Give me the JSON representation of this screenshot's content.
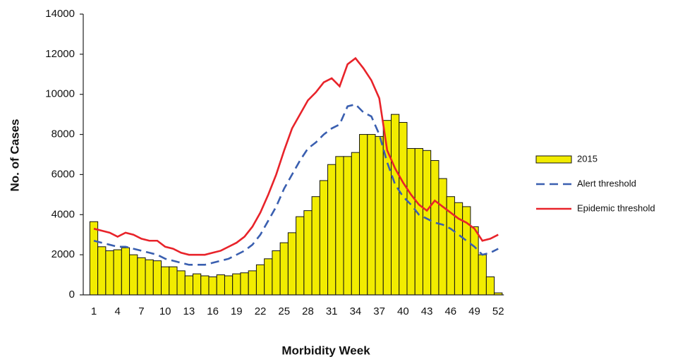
{
  "chart_data": {
    "type": "bar",
    "xlabel": "Morbidity Week",
    "ylabel": "No. of Cases",
    "categories": [
      "1",
      null,
      null,
      "4",
      null,
      null,
      "7",
      null,
      null,
      "10",
      null,
      null,
      "13",
      null,
      null,
      "16",
      null,
      null,
      "19",
      null,
      null,
      "22",
      null,
      null,
      "25",
      null,
      null,
      "28",
      null,
      null,
      "31",
      null,
      null,
      "34",
      null,
      null,
      "37",
      null,
      null,
      "40",
      null,
      null,
      "43",
      null,
      null,
      "46",
      null,
      null,
      "49",
      null,
      null,
      "52"
    ],
    "ylim": [
      0,
      14000
    ],
    "yticks": [
      0,
      2000,
      4000,
      6000,
      8000,
      10000,
      12000,
      14000
    ],
    "grid": false,
    "legend": "right",
    "series": [
      {
        "name": "2015",
        "type": "bar",
        "color": "#f2ec00",
        "values": [
          3650,
          2400,
          2200,
          2250,
          2350,
          2000,
          1850,
          1750,
          1700,
          1400,
          1400,
          1200,
          950,
          1050,
          950,
          900,
          1000,
          950,
          1050,
          1100,
          1200,
          1500,
          1800,
          2200,
          2600,
          3100,
          3900,
          4200,
          4900,
          5700,
          6500,
          6900,
          6900,
          7100,
          8000,
          8000,
          7900,
          8700,
          9000,
          8600,
          7300,
          7300,
          7200,
          6700,
          5800,
          4900,
          4600,
          4400,
          3400,
          2000,
          900,
          100
        ]
      },
      {
        "name": "Alert threshold",
        "type": "line",
        "style": "dashed",
        "color": "#3a5fb0",
        "values": [
          2700,
          2600,
          2500,
          2400,
          2400,
          2300,
          2200,
          2100,
          2000,
          1800,
          1700,
          1600,
          1500,
          1500,
          1500,
          1600,
          1700,
          1800,
          2000,
          2200,
          2500,
          3000,
          3700,
          4400,
          5300,
          6000,
          6700,
          7300,
          7600,
          8000,
          8300,
          8500,
          9400,
          9500,
          9100,
          8900,
          8000,
          6600,
          5500,
          4900,
          4500,
          4000,
          3800,
          3600,
          3500,
          3300,
          3000,
          2700,
          2400,
          2000,
          2100,
          2300
        ]
      },
      {
        "name": "Epidemic threshold",
        "type": "line",
        "style": "solid",
        "color": "#e8232a",
        "values": [
          3300,
          3200,
          3100,
          2900,
          3100,
          3000,
          2800,
          2700,
          2700,
          2400,
          2300,
          2100,
          2000,
          2000,
          2000,
          2100,
          2200,
          2400,
          2600,
          2900,
          3400,
          4100,
          5000,
          6000,
          7200,
          8300,
          9000,
          9700,
          10100,
          10600,
          10800,
          10400,
          11500,
          11800,
          11300,
          10700,
          9800,
          7200,
          6300,
          5600,
          5000,
          4500,
          4200,
          4700,
          4400,
          4100,
          3800,
          3600,
          3300,
          2700,
          2800,
          3000
        ]
      }
    ]
  }
}
